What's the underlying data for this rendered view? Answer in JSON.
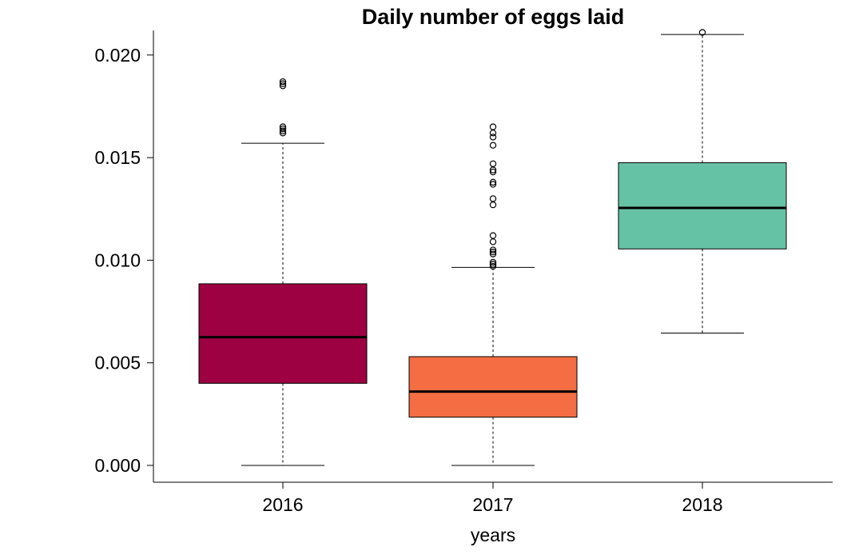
{
  "chart_data": {
    "type": "boxplot",
    "title": "Daily number of eggs laid",
    "xlabel": "years",
    "ylabel": "",
    "ylim": [
      -0.00082,
      0.0212
    ],
    "yticks": [
      0.0,
      0.005,
      0.01,
      0.015,
      0.02
    ],
    "ytick_labels": [
      "0.000",
      "0.005",
      "0.010",
      "0.015",
      "0.020"
    ],
    "categories": [
      "2016",
      "2017",
      "2018"
    ],
    "boxes": [
      {
        "name": "2016",
        "color": "#9E0142",
        "whisker_low": 0.0,
        "q1": 0.004,
        "median": 0.00625,
        "q3": 0.00885,
        "whisker_high": 0.0157,
        "outliers": [
          0.0162,
          0.0163,
          0.0164,
          0.0165,
          0.0185,
          0.0186,
          0.0187
        ]
      },
      {
        "name": "2017",
        "color": "#F46D43",
        "whisker_low": 0.0,
        "q1": 0.00235,
        "median": 0.0036,
        "q3": 0.0053,
        "whisker_high": 0.00965,
        "outliers": [
          0.0097,
          0.0098,
          0.0099,
          0.0103,
          0.0104,
          0.0105,
          0.0109,
          0.0112,
          0.0127,
          0.013,
          0.0137,
          0.0138,
          0.0143,
          0.0144,
          0.0147,
          0.0156,
          0.016,
          0.0162,
          0.0165
        ]
      },
      {
        "name": "2018",
        "color": "#66C2A5",
        "whisker_low": 0.00645,
        "q1": 0.01055,
        "median": 0.01255,
        "q3": 0.01475,
        "whisker_high": 0.021,
        "outliers": [
          0.0211
        ]
      }
    ]
  }
}
